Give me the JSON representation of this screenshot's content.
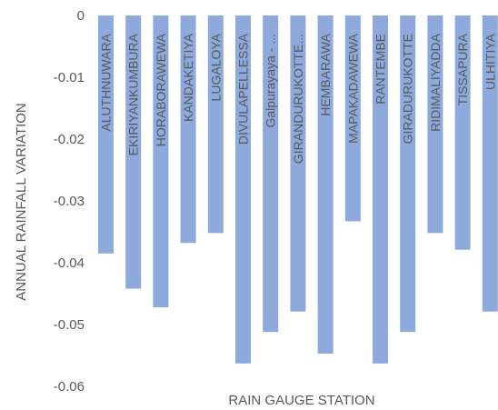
{
  "chart_data": {
    "type": "bar",
    "title": "",
    "xlabel": "RAIN GAUGE STATION",
    "ylabel": "ANNUAL RAINFALL VARIATION",
    "ylim": [
      -0.06,
      0
    ],
    "yticks": [
      "0",
      "-0.01",
      "-0.02",
      "-0.03",
      "-0.04",
      "-0.05",
      "-0.06"
    ],
    "ytick_values": [
      0,
      -0.01,
      -0.02,
      -0.03,
      -0.04,
      -0.05,
      -0.06
    ],
    "grid": false,
    "legend": "none",
    "bar_color": "#8eaadc",
    "categories": [
      "ALUTHNUWARA",
      "EKIRIYANKUMBURA",
      "HORABORAWEWA",
      "KANDAKETIYA",
      "LUGALOYA",
      "DIVULAPELLESSA",
      "Galpurayaya - ...",
      "GIRANDURUKOTTE...",
      "HEMBARAWA",
      "MAPAKADAWEWA",
      "RANTEMBE",
      "GIRADURUKOTTE",
      "RIDIMALIYADDA",
      "TISSAPURA",
      "ULHITIYA"
    ],
    "values": [
      -0.0385,
      -0.0442,
      -0.0472,
      -0.0368,
      -0.0352,
      -0.0563,
      -0.0512,
      -0.0479,
      -0.0547,
      -0.0333,
      -0.0563,
      -0.0512,
      -0.0352,
      -0.0379,
      -0.0479
    ]
  }
}
